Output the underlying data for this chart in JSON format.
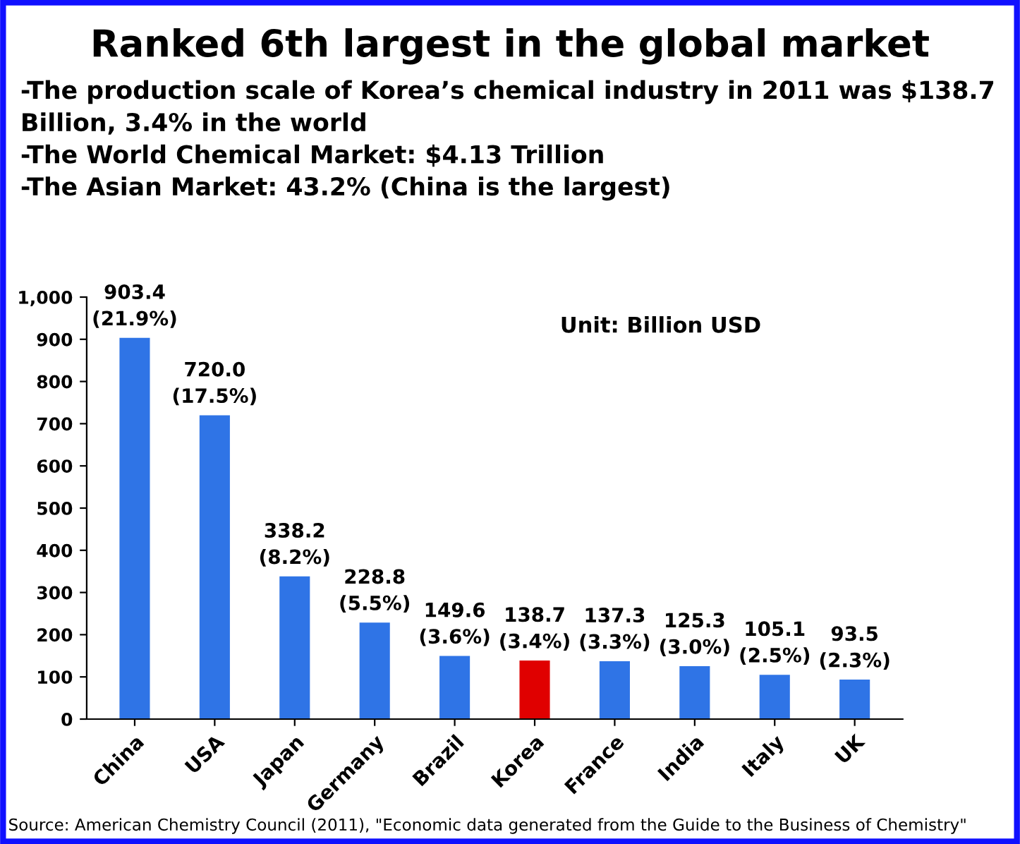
{
  "chart_data": {
    "type": "bar",
    "title": "Ranked 6th largest in the global market",
    "subtitle": "-The production scale of Korea’s chemical industry in 2011 was $138.7\nBillion, 3.4% in the world\n-The World Chemical Market: $4.13 Trillion\n-The Asian Market: 43.2% (China is the largest)",
    "categories": [
      "China",
      "USA",
      "Japan",
      "Germany",
      "Brazil",
      "Korea",
      "France",
      "India",
      "Italy",
      "UK"
    ],
    "values": [
      903.4,
      720.0,
      338.2,
      228.8,
      149.6,
      138.7,
      137.3,
      125.3,
      105.1,
      93.5
    ],
    "value_labels": [
      "903.4\n(21.9%)",
      "720.0\n(17.5%)",
      "338.2\n(8.2%)",
      "228.8\n(5.5%)",
      "149.6\n(3.6%)",
      "138.7\n(3.4%)",
      "137.3\n(3.3%)",
      "125.3\n(3.0%)",
      "105.1\n(2.5%)",
      "93.5\n(2.3%)"
    ],
    "colors": [
      "#2f74e6",
      "#2f74e6",
      "#2f74e6",
      "#2f74e6",
      "#2f74e6",
      "#e00000",
      "#2f74e6",
      "#2f74e6",
      "#2f74e6",
      "#2f74e6"
    ],
    "ylim": [
      0,
      1000
    ],
    "yticks": [
      0,
      100,
      200,
      300,
      400,
      500,
      600,
      700,
      800,
      900,
      {
        "value": 1000,
        "label": "1,000"
      }
    ],
    "annotations": [
      "Unit: Billion USD",
      "Source: American Chemistry Council (2011), \"Economic data generated from the Guide to the Business of Chemistry\""
    ]
  }
}
